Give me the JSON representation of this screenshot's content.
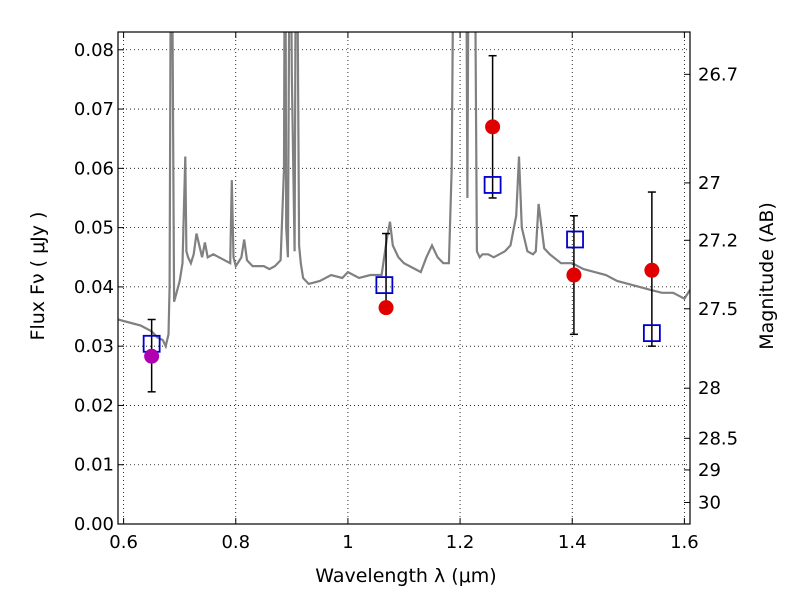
{
  "chart_data": {
    "type": "scatter",
    "xlabel": "Wavelength  λ (μm)",
    "ylabel": "Flux  Fν  ( μJy )",
    "ylabel_right": "Magnitude (AB)",
    "xlim": [
      0.59,
      1.61
    ],
    "ylim": [
      0.0,
      0.083
    ],
    "grid": true,
    "x_ticks": [
      0.6,
      0.8,
      1.0,
      1.2,
      1.4,
      1.6
    ],
    "x_tick_labels": [
      "0.6",
      "0.8",
      "1",
      "1.2",
      "1.4",
      "1.6"
    ],
    "y_ticks": [
      0.0,
      0.01,
      0.02,
      0.03,
      0.04,
      0.05,
      0.06,
      0.07,
      0.08
    ],
    "y_tick_labels": [
      "0.00",
      "0.01",
      "0.02",
      "0.03",
      "0.04",
      "0.05",
      "0.06",
      "0.07",
      "0.08"
    ],
    "right_ticks": [
      26.7,
      27.0,
      27.2,
      27.5,
      28.0,
      28.5,
      29.0,
      30.0
    ],
    "right_tick_labels": [
      "26.7",
      "27",
      "27.2",
      "27.5",
      "28",
      "28.5",
      "29",
      "30"
    ],
    "series": [
      {
        "kind": "model-spectrum",
        "color": "#808080",
        "x": [
          0.59,
          0.61,
          0.63,
          0.65,
          0.66,
          0.67,
          0.675,
          0.68,
          0.682,
          0.685,
          0.69,
          0.7,
          0.705,
          0.71,
          0.712,
          0.715,
          0.72,
          0.725,
          0.73,
          0.74,
          0.745,
          0.75,
          0.76,
          0.78,
          0.79,
          0.793,
          0.796,
          0.8,
          0.81,
          0.815,
          0.82,
          0.825,
          0.83,
          0.85,
          0.86,
          0.87,
          0.88,
          0.886,
          0.888,
          0.89,
          0.893,
          0.897,
          0.9,
          0.905,
          0.908,
          0.91,
          0.913,
          0.916,
          0.92,
          0.93,
          0.95,
          0.97,
          0.99,
          1.0,
          1.02,
          1.04,
          1.06,
          1.07,
          1.075,
          1.08,
          1.09,
          1.1,
          1.12,
          1.13,
          1.14,
          1.15,
          1.16,
          1.17,
          1.18,
          1.185,
          1.19,
          1.195,
          1.2,
          1.21,
          1.213,
          1.216,
          1.22,
          1.225,
          1.23,
          1.235,
          1.24,
          1.25,
          1.26,
          1.27,
          1.28,
          1.29,
          1.3,
          1.305,
          1.31,
          1.32,
          1.33,
          1.335,
          1.34,
          1.35,
          1.36,
          1.38,
          1.4,
          1.42,
          1.44,
          1.46,
          1.48,
          1.5,
          1.52,
          1.54,
          1.56,
          1.58,
          1.6,
          1.61
        ],
        "y": [
          0.0345,
          0.034,
          0.0335,
          0.0325,
          0.0315,
          0.031,
          0.03,
          0.032,
          0.04,
          0.12,
          0.0375,
          0.041,
          0.044,
          0.062,
          0.046,
          0.045,
          0.044,
          0.0455,
          0.049,
          0.045,
          0.0475,
          0.045,
          0.0455,
          0.0445,
          0.044,
          0.058,
          0.045,
          0.0435,
          0.045,
          0.048,
          0.0445,
          0.044,
          0.0435,
          0.0435,
          0.043,
          0.0435,
          0.0445,
          0.06,
          0.12,
          0.05,
          0.045,
          0.12,
          0.076,
          0.046,
          0.12,
          0.09,
          0.047,
          0.044,
          0.0415,
          0.0405,
          0.041,
          0.042,
          0.0415,
          0.0425,
          0.0415,
          0.042,
          0.042,
          0.0485,
          0.051,
          0.047,
          0.045,
          0.044,
          0.043,
          0.0425,
          0.045,
          0.047,
          0.045,
          0.044,
          0.044,
          0.06,
          0.12,
          0.12,
          0.12,
          0.12,
          0.055,
          0.12,
          0.12,
          0.12,
          0.046,
          0.045,
          0.0455,
          0.0455,
          0.045,
          0.0455,
          0.046,
          0.047,
          0.052,
          0.062,
          0.05,
          0.046,
          0.0455,
          0.046,
          0.054,
          0.0465,
          0.0455,
          0.044,
          0.044,
          0.043,
          0.0425,
          0.042,
          0.041,
          0.0405,
          0.04,
          0.0395,
          0.039,
          0.039,
          0.038,
          0.0395
        ]
      },
      {
        "kind": "observed",
        "color": "#e00000",
        "x": [
          1.068,
          1.258,
          1.403,
          1.542
        ],
        "y": [
          0.0365,
          0.067,
          0.042,
          0.0428
        ],
        "yerr_low": [
          0.0365,
          0.055,
          0.032,
          0.03
        ],
        "yerr_high": [
          0.049,
          0.079,
          0.052,
          0.056
        ]
      },
      {
        "kind": "observed-upper",
        "color": "#b000b0",
        "x": [
          0.65
        ],
        "y": [
          0.0283
        ],
        "yerr_low": [
          0.0223
        ],
        "yerr_high": [
          0.0345
        ]
      },
      {
        "kind": "model-band",
        "color": "#0000cc",
        "x": [
          0.65,
          1.065,
          1.258,
          1.405,
          1.542
        ],
        "y": [
          0.0304,
          0.0403,
          0.0572,
          0.048,
          0.0322
        ]
      }
    ]
  }
}
